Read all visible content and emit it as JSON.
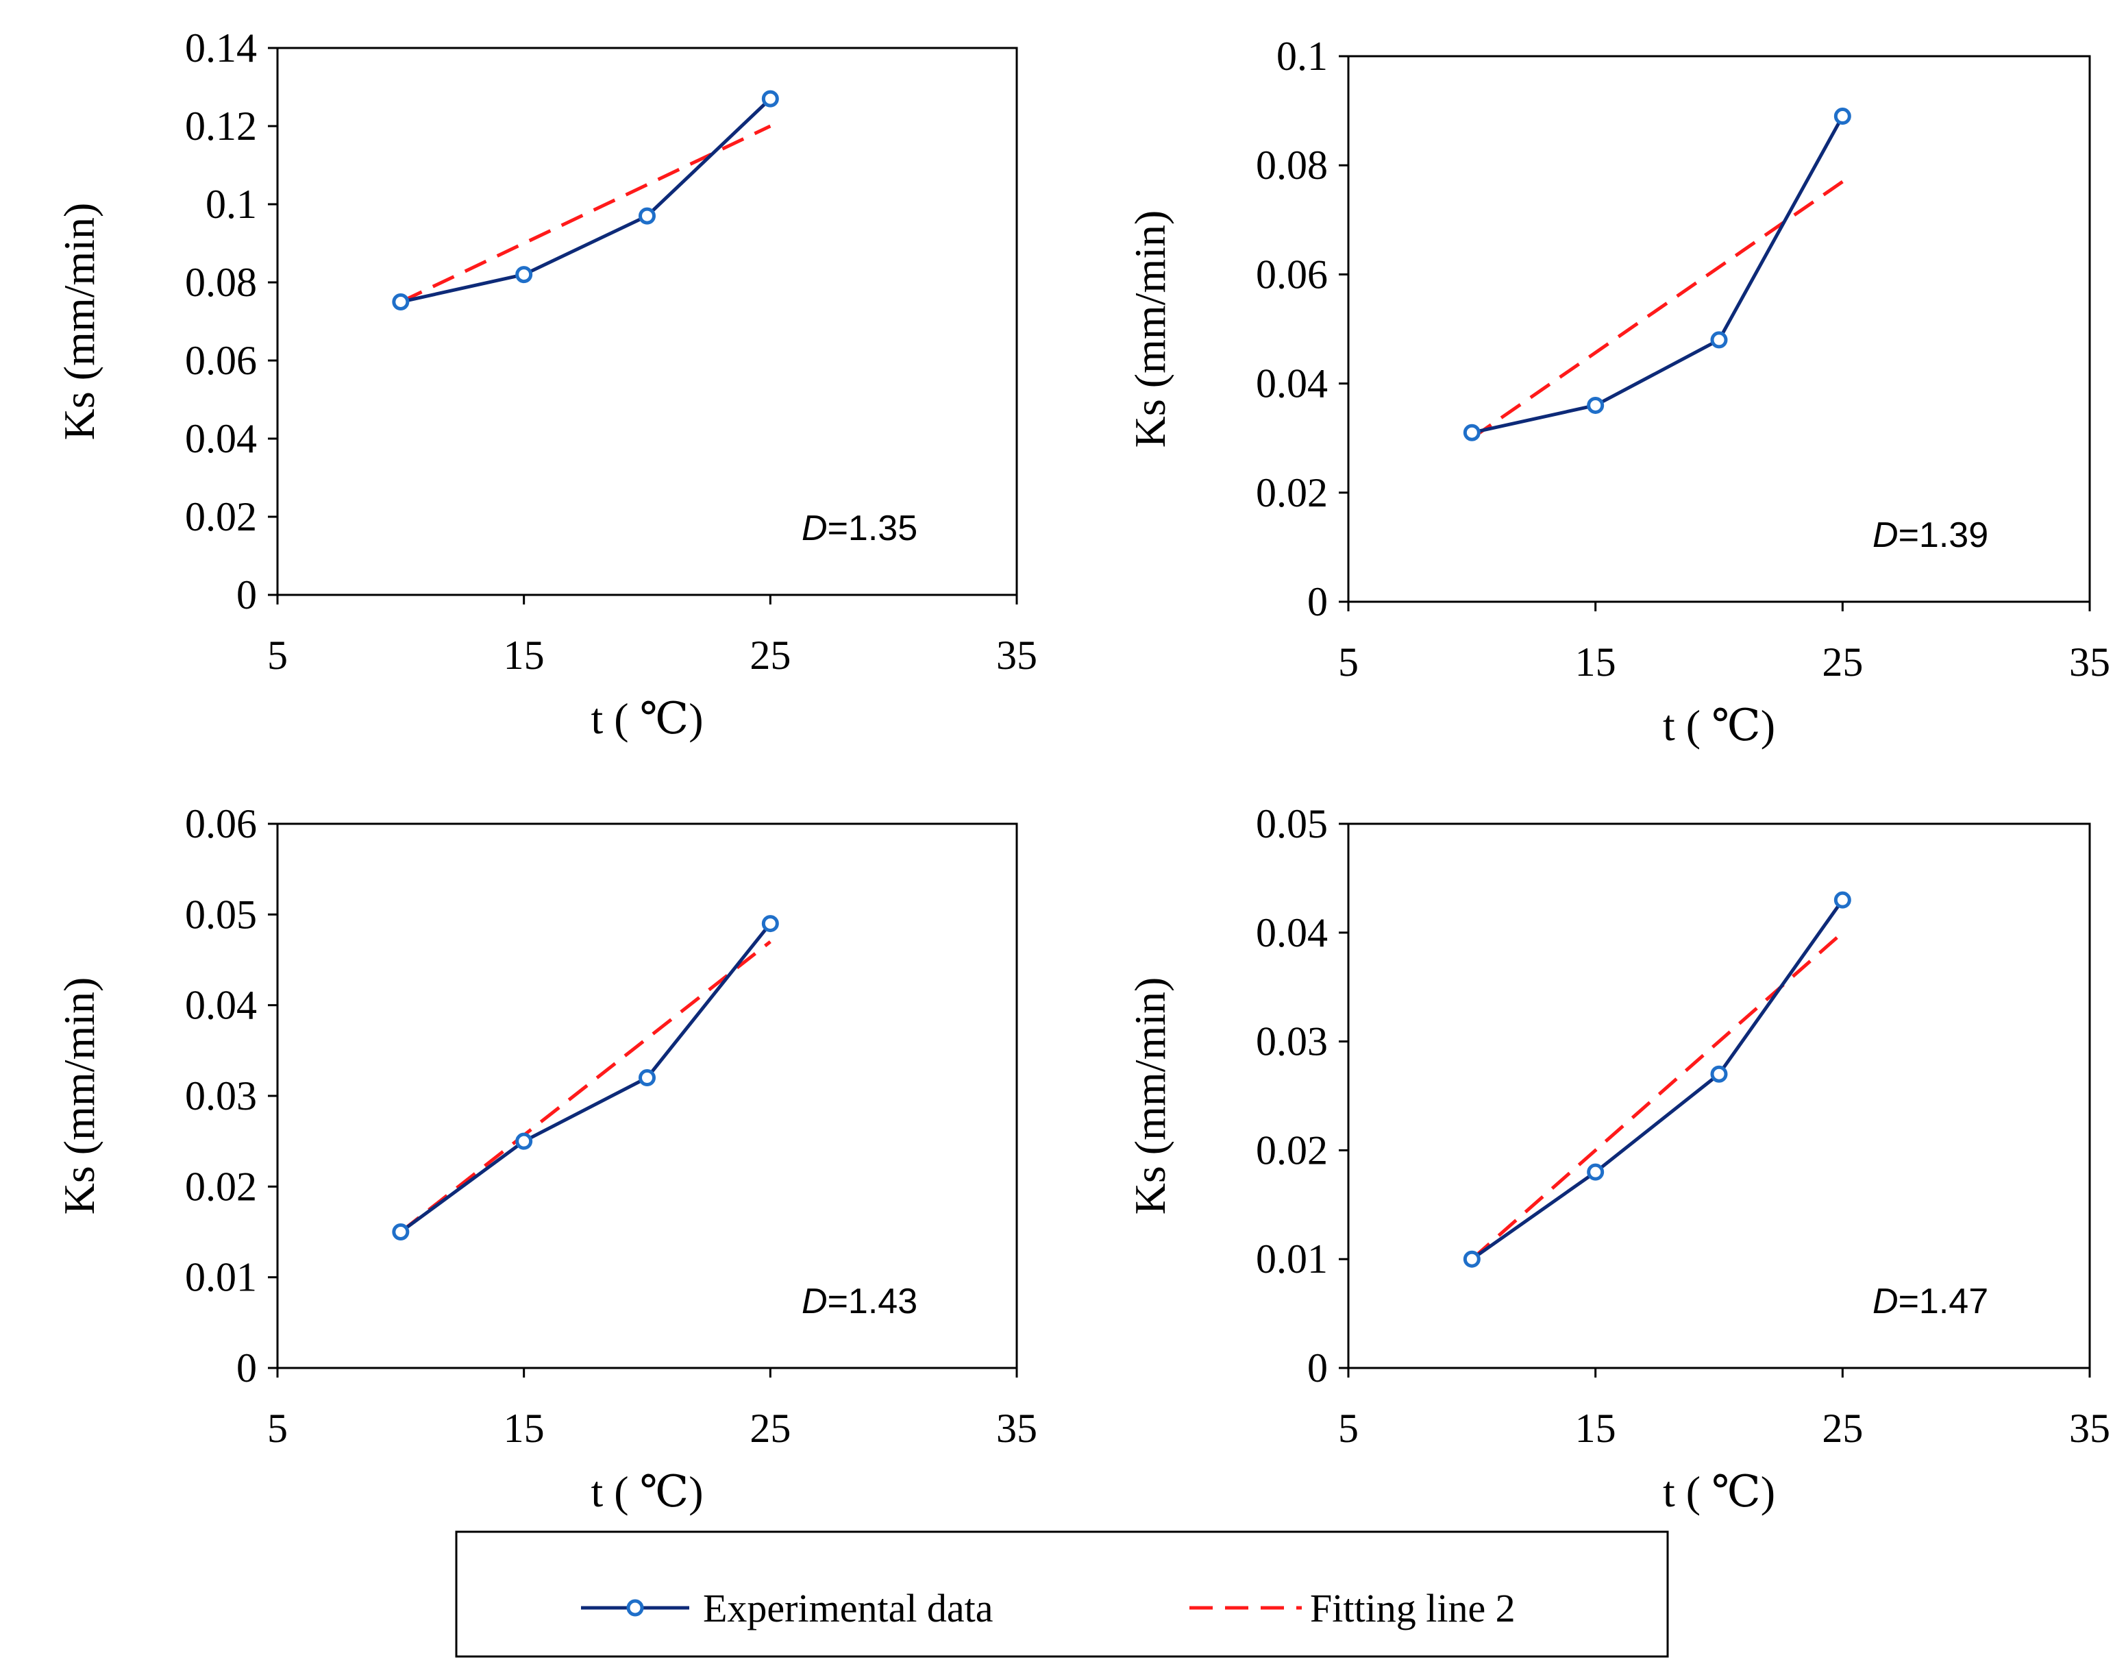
{
  "colors": {
    "experimental_line": "#0d2a78",
    "experimental_marker": "#1f6fc9",
    "fitting_line": "#ff1a1a"
  },
  "legend": {
    "experimental_label": "Experimental data",
    "fitting_label": "Fitting line 2"
  },
  "chart_data": [
    {
      "type": "line",
      "xlabel": "t ( ℃)",
      "ylabel": "Ks (mm/min)",
      "annotation": {
        "italic": "D",
        "rest": "=1.35"
      },
      "xlim": [
        5,
        35
      ],
      "ylim": [
        0,
        0.14
      ],
      "xticks": [
        5,
        15,
        25,
        35
      ],
      "xtick_labels": [
        "5",
        "15",
        "25",
        "35"
      ],
      "yticks": [
        0,
        0.02,
        0.04,
        0.06,
        0.08,
        0.1,
        0.12,
        0.14
      ],
      "ytick_labels": [
        "0",
        "0.02",
        "0.04",
        "0.06",
        "0.08",
        "0.1",
        "0.12",
        "0.14"
      ],
      "series": [
        {
          "name": "Experimental data",
          "x": [
            10,
            15,
            20,
            25
          ],
          "y": [
            0.075,
            0.082,
            0.097,
            0.127
          ]
        },
        {
          "name": "Fitting line 2",
          "x": [
            10,
            25
          ],
          "y": [
            0.075,
            0.12
          ]
        }
      ]
    },
    {
      "type": "line",
      "xlabel": "t ( ℃)",
      "ylabel": "Ks (mm/min)",
      "annotation": {
        "italic": "D",
        "rest": "=1.39"
      },
      "xlim": [
        5,
        35
      ],
      "ylim": [
        0,
        0.1
      ],
      "xticks": [
        5,
        15,
        25,
        35
      ],
      "xtick_labels": [
        "5",
        "15",
        "25",
        "35"
      ],
      "yticks": [
        0,
        0.02,
        0.04,
        0.06,
        0.08,
        0.1
      ],
      "ytick_labels": [
        "0",
        "0.02",
        "0.04",
        "0.06",
        "0.08",
        "0.1"
      ],
      "series": [
        {
          "name": "Experimental data",
          "x": [
            10,
            15,
            20,
            25
          ],
          "y": [
            0.031,
            0.036,
            0.048,
            0.089
          ]
        },
        {
          "name": "Fitting line 2",
          "x": [
            10,
            25
          ],
          "y": [
            0.03,
            0.077
          ]
        }
      ]
    },
    {
      "type": "line",
      "xlabel": "t ( ℃)",
      "ylabel": "Ks (mm/min)",
      "annotation": {
        "italic": "D",
        "rest": "=1.43"
      },
      "xlim": [
        5,
        35
      ],
      "ylim": [
        0,
        0.06
      ],
      "xticks": [
        5,
        15,
        25,
        35
      ],
      "xtick_labels": [
        "5",
        "15",
        "25",
        "35"
      ],
      "yticks": [
        0,
        0.01,
        0.02,
        0.03,
        0.04,
        0.05,
        0.06
      ],
      "ytick_labels": [
        "0",
        "0.01",
        "0.02",
        "0.03",
        "0.04",
        "0.05",
        "0.06"
      ],
      "series": [
        {
          "name": "Experimental data",
          "x": [
            10,
            15,
            20,
            25
          ],
          "y": [
            0.015,
            0.025,
            0.032,
            0.049
          ]
        },
        {
          "name": "Fitting line 2",
          "x": [
            10,
            25
          ],
          "y": [
            0.015,
            0.047
          ]
        }
      ]
    },
    {
      "type": "line",
      "xlabel": "t ( ℃)",
      "ylabel": "Ks (mm/min)",
      "annotation": {
        "italic": "D",
        "rest": "=1.47"
      },
      "xlim": [
        5,
        35
      ],
      "ylim": [
        0,
        0.05
      ],
      "xticks": [
        5,
        15,
        25,
        35
      ],
      "xtick_labels": [
        "5",
        "15",
        "25",
        "35"
      ],
      "yticks": [
        0,
        0.01,
        0.02,
        0.03,
        0.04,
        0.05
      ],
      "ytick_labels": [
        "0",
        "0.01",
        "0.02",
        "0.03",
        "0.04",
        "0.05"
      ],
      "series": [
        {
          "name": "Experimental data",
          "x": [
            10,
            15,
            20,
            25
          ],
          "y": [
            0.01,
            0.018,
            0.027,
            0.043
          ]
        },
        {
          "name": "Fitting line 2",
          "x": [
            10,
            25
          ],
          "y": [
            0.01,
            0.04
          ]
        }
      ]
    }
  ]
}
